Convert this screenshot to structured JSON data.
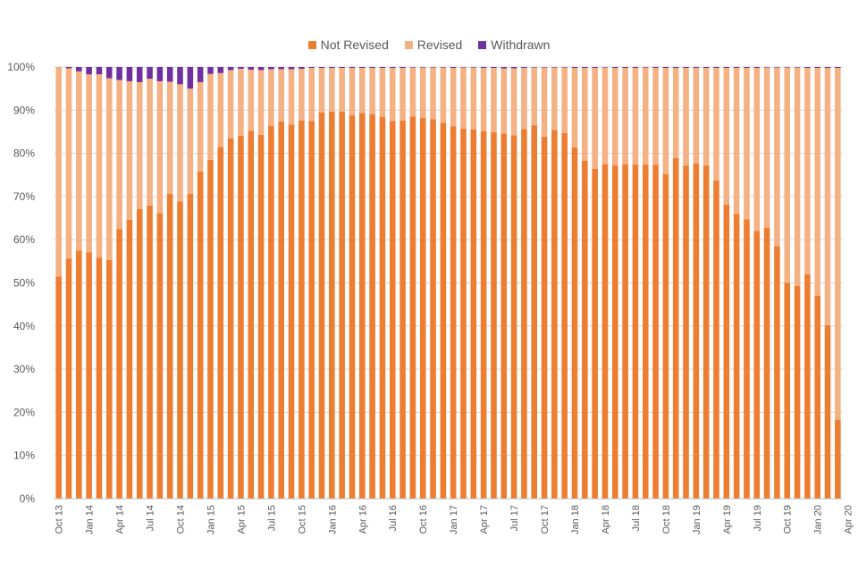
{
  "chart_data": {
    "type": "bar",
    "stacked": true,
    "percent_stacked": true,
    "title": "",
    "xlabel": "",
    "ylabel": "",
    "ylim": [
      0,
      100
    ],
    "y_ticks": [
      "0%",
      "10%",
      "20%",
      "30%",
      "40%",
      "50%",
      "60%",
      "70%",
      "80%",
      "90%",
      "100%"
    ],
    "grid": "horizontal",
    "legend_position": "top-center",
    "x_tick_labels": [
      {
        "index": 0,
        "label": "Oct 13"
      },
      {
        "index": 3,
        "label": "Jan 14"
      },
      {
        "index": 6,
        "label": "Apr 14"
      },
      {
        "index": 9,
        "label": "Jul 14"
      },
      {
        "index": 12,
        "label": "Oct 14"
      },
      {
        "index": 15,
        "label": "Jan 15"
      },
      {
        "index": 18,
        "label": "Apr 15"
      },
      {
        "index": 21,
        "label": "Jul 15"
      },
      {
        "index": 24,
        "label": "Oct 15"
      },
      {
        "index": 27,
        "label": "Jan 16"
      },
      {
        "index": 30,
        "label": "Apr 16"
      },
      {
        "index": 33,
        "label": "Jul 16"
      },
      {
        "index": 36,
        "label": "Oct 16"
      },
      {
        "index": 39,
        "label": "Jan 17"
      },
      {
        "index": 42,
        "label": "Apr 17"
      },
      {
        "index": 45,
        "label": "Jul 17"
      },
      {
        "index": 48,
        "label": "Oct 17"
      },
      {
        "index": 51,
        "label": "Jan 18"
      },
      {
        "index": 54,
        "label": "Apr 18"
      },
      {
        "index": 57,
        "label": "Jul 18"
      },
      {
        "index": 60,
        "label": "Oct 18"
      },
      {
        "index": 63,
        "label": "Jan 19"
      },
      {
        "index": 66,
        "label": "Apr 19"
      },
      {
        "index": 69,
        "label": "Jul 19"
      },
      {
        "index": 72,
        "label": "Oct 19"
      },
      {
        "index": 75,
        "label": "Jan 20"
      },
      {
        "index": 78,
        "label": "Apr 20"
      }
    ],
    "series": [
      {
        "name": "Not Revised",
        "color": "#ED7D31",
        "values": [
          51.5,
          55.6,
          57.5,
          57.1,
          55.8,
          55.3,
          62.5,
          64.6,
          67.1,
          67.9,
          66.2,
          70.6,
          68.9,
          70.6,
          75.8,
          78.5,
          81.5,
          83.5,
          84.1,
          85.2,
          84.3,
          86.4,
          87.4,
          86.7,
          87.6,
          87.5,
          89.5,
          89.7,
          89.7,
          88.8,
          89.4,
          89.1,
          88.4,
          87.5,
          87.6,
          88.5,
          88.2,
          87.9,
          87.1,
          86.3,
          85.7,
          85.5,
          85.1,
          84.9,
          84.6,
          84.2,
          85.6,
          86.5,
          83.9,
          85.4,
          84.7,
          81.4,
          78.3,
          76.4,
          77.5,
          77.2,
          77.5,
          77.4,
          77.4,
          77.4,
          75.2,
          78.9,
          77.2,
          77.7,
          77.2,
          73.7,
          68.1,
          66.0,
          64.7,
          62.0,
          62.8,
          58.5,
          50.0,
          49.3,
          52.0,
          47.0,
          40.2,
          18.3
        ]
      },
      {
        "name": "Revised",
        "color": "#F4B183",
        "values": [
          48.5,
          44.1,
          41.5,
          41.2,
          42.5,
          42.1,
          34.5,
          32.1,
          29.4,
          29.4,
          30.5,
          26.0,
          27.1,
          24.4,
          20.7,
          19.9,
          17.1,
          15.8,
          15.5,
          14.2,
          15.0,
          13.1,
          12.1,
          12.8,
          12.0,
          12.3,
          10.3,
          10.1,
          10.1,
          11.0,
          10.4,
          10.7,
          11.4,
          12.3,
          12.2,
          11.4,
          11.7,
          12.0,
          12.8,
          13.5,
          14.2,
          14.4,
          14.7,
          14.9,
          15.1,
          15.5,
          14.2,
          13.4,
          16.0,
          14.5,
          15.2,
          18.4,
          21.5,
          23.4,
          22.4,
          22.6,
          22.3,
          22.4,
          22.5,
          22.4,
          24.6,
          20.9,
          22.6,
          22.1,
          22.6,
          26.1,
          31.7,
          33.8,
          35.1,
          37.8,
          37.1,
          41.4,
          49.9,
          50.6,
          47.8,
          52.8,
          59.6,
          81.5
        ]
      },
      {
        "name": "Withdrawn",
        "color": "#7030A0",
        "values": [
          0.0,
          0.3,
          1.0,
          1.7,
          1.7,
          2.6,
          3.0,
          3.3,
          3.5,
          2.7,
          3.3,
          3.4,
          4.0,
          5.0,
          3.5,
          1.6,
          1.4,
          0.7,
          0.4,
          0.6,
          0.7,
          0.5,
          0.5,
          0.5,
          0.4,
          0.2,
          0.2,
          0.2,
          0.2,
          0.2,
          0.2,
          0.2,
          0.2,
          0.2,
          0.2,
          0.1,
          0.1,
          0.1,
          0.1,
          0.2,
          0.1,
          0.1,
          0.2,
          0.2,
          0.3,
          0.3,
          0.2,
          0.1,
          0.1,
          0.1,
          0.1,
          0.2,
          0.2,
          0.2,
          0.1,
          0.2,
          0.2,
          0.2,
          0.1,
          0.2,
          0.2,
          0.2,
          0.2,
          0.2,
          0.2,
          0.2,
          0.2,
          0.2,
          0.2,
          0.2,
          0.1,
          0.1,
          0.1,
          0.1,
          0.2,
          0.2,
          0.2,
          0.2
        ]
      }
    ]
  }
}
